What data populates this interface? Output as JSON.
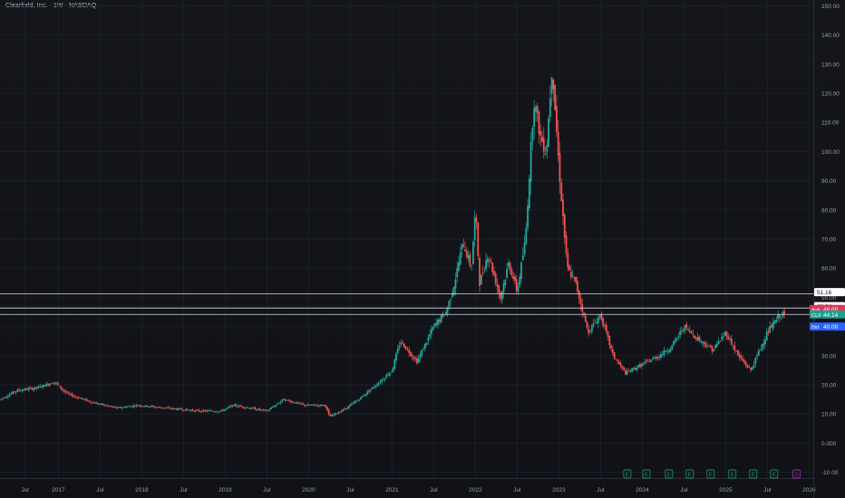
{
  "header": {
    "title": "Clearfield, Inc. · 1W · NASDAQ"
  },
  "colors": {
    "up": "#26a69a",
    "down": "#ef5350",
    "grid": "#1c1f27",
    "axis_text": "#9aa0ab",
    "ask": "#e0345c",
    "last": "#1e9f8e",
    "bid": "#2962ff",
    "event": "#1b8f5a",
    "dividend": "#9c27b0"
  },
  "chart_data": {
    "type": "candlestick",
    "title": "Clearfield, Inc. · 1W · NASDAQ",
    "yticks": [
      "150.00",
      "140.00",
      "130.00",
      "120.00",
      "110.00",
      "100.00",
      "90.00",
      "80.00",
      "70.00",
      "60.00",
      "50.00",
      "40.00",
      "30.00",
      "20.00",
      "10.00",
      "0.000",
      "-10.00"
    ],
    "xticks": [
      "Jul",
      "2017",
      "Jul",
      "2018",
      "Jul",
      "2019",
      "Jul",
      "2020",
      "Jul",
      "2021",
      "Jul",
      "2022",
      "Jul",
      "2023",
      "Jul",
      "2024",
      "Jul",
      "2025",
      "Jul",
      "2026"
    ],
    "ylim": [
      -12,
      152
    ],
    "xlim": [
      2016.3,
      2026.05
    ],
    "price_path": [
      [
        2016.3,
        15
      ],
      [
        2016.5,
        18
      ],
      [
        2016.75,
        19
      ],
      [
        2016.95,
        21
      ],
      [
        2017.1,
        17
      ],
      [
        2017.4,
        14
      ],
      [
        2017.7,
        12
      ],
      [
        2017.95,
        13
      ],
      [
        2018.3,
        12
      ],
      [
        2018.7,
        11
      ],
      [
        2018.95,
        11
      ],
      [
        2019.1,
        13
      ],
      [
        2019.3,
        12
      ],
      [
        2019.5,
        11
      ],
      [
        2019.7,
        15
      ],
      [
        2019.95,
        13
      ],
      [
        2020.2,
        13
      ],
      [
        2020.25,
        9
      ],
      [
        2020.45,
        12
      ],
      [
        2020.6,
        15
      ],
      [
        2020.85,
        21
      ],
      [
        2021.0,
        25
      ],
      [
        2021.1,
        35
      ],
      [
        2021.3,
        28
      ],
      [
        2021.5,
        40
      ],
      [
        2021.65,
        45
      ],
      [
        2021.75,
        55
      ],
      [
        2021.85,
        69
      ],
      [
        2021.95,
        60
      ],
      [
        2022.0,
        80
      ],
      [
        2022.05,
        55
      ],
      [
        2022.15,
        65
      ],
      [
        2022.3,
        50
      ],
      [
        2022.4,
        62
      ],
      [
        2022.5,
        52
      ],
      [
        2022.6,
        70
      ],
      [
        2022.7,
        118
      ],
      [
        2022.78,
        105
      ],
      [
        2022.85,
        100
      ],
      [
        2022.92,
        130
      ],
      [
        2023.0,
        95
      ],
      [
        2023.1,
        60
      ],
      [
        2023.2,
        55
      ],
      [
        2023.35,
        38
      ],
      [
        2023.5,
        44
      ],
      [
        2023.65,
        30
      ],
      [
        2023.8,
        24
      ],
      [
        2024.0,
        27
      ],
      [
        2024.2,
        30
      ],
      [
        2024.35,
        33
      ],
      [
        2024.5,
        40
      ],
      [
        2024.7,
        35
      ],
      [
        2024.85,
        32
      ],
      [
        2025.0,
        38
      ],
      [
        2025.15,
        30
      ],
      [
        2025.3,
        25
      ],
      [
        2025.5,
        38
      ],
      [
        2025.65,
        44
      ],
      [
        2025.72,
        44.14
      ]
    ],
    "hlines": [
      {
        "value": 51.16,
        "label": "51.16"
      },
      {
        "value": 46.34,
        "label": "46.34"
      },
      {
        "value": 44.14,
        "label": "44.14"
      }
    ],
    "price_tags": [
      {
        "name": "ask",
        "prefix": "Ask",
        "value": "46.00",
        "y": 46.0
      },
      {
        "name": "last",
        "prefix": "CLFD",
        "value": "44.14",
        "y": 44.14
      },
      {
        "name": "bid",
        "prefix": "Bid",
        "value": "40.00",
        "y": 40.0
      }
    ],
    "events": [
      {
        "label": "E",
        "t": 2023.82
      },
      {
        "label": "E",
        "t": 2024.05
      },
      {
        "label": "E",
        "t": 2024.32
      },
      {
        "label": "E",
        "t": 2024.57
      },
      {
        "label": "E",
        "t": 2024.82
      },
      {
        "label": "E",
        "t": 2025.08
      },
      {
        "label": "E",
        "t": 2025.33
      },
      {
        "label": "E",
        "t": 2025.58
      },
      {
        "label": "D",
        "t": 2025.85
      }
    ]
  }
}
